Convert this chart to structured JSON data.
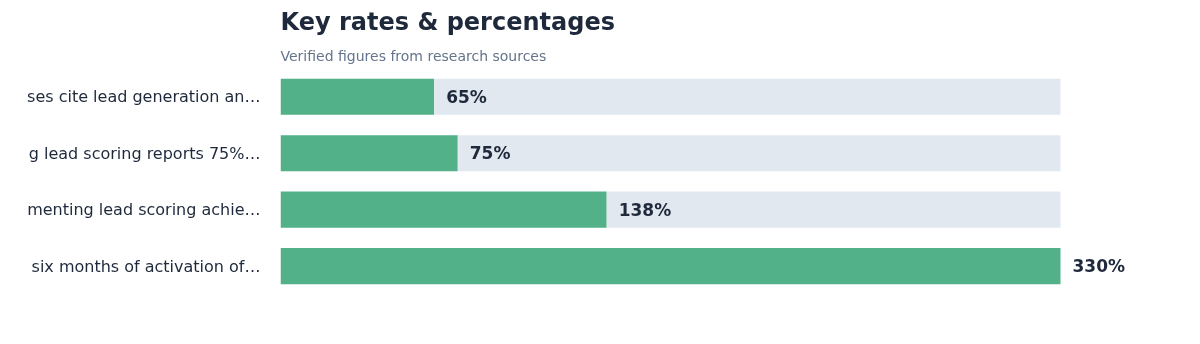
{
  "chart_data": {
    "type": "bar",
    "orientation": "horizontal",
    "stacked": true,
    "title": "Key rates & percentages",
    "subtitle": "Verified figures from research sources",
    "categories": [
      "ses cite lead generation an…",
      "g lead scoring reports 75%…",
      "menting lead scoring achie…",
      "six months of activation of…"
    ],
    "series": [
      {
        "color": "#52b188",
        "values": [
          65,
          75,
          138,
          330
        ],
        "value_labels": [
          "65%",
          "75%",
          "138%",
          "330%"
        ]
      },
      {
        "color": "#e2e8f0",
        "values": [
          265,
          255,
          192,
          0
        ]
      }
    ],
    "tick_labels": "y",
    "grid": false
  }
}
